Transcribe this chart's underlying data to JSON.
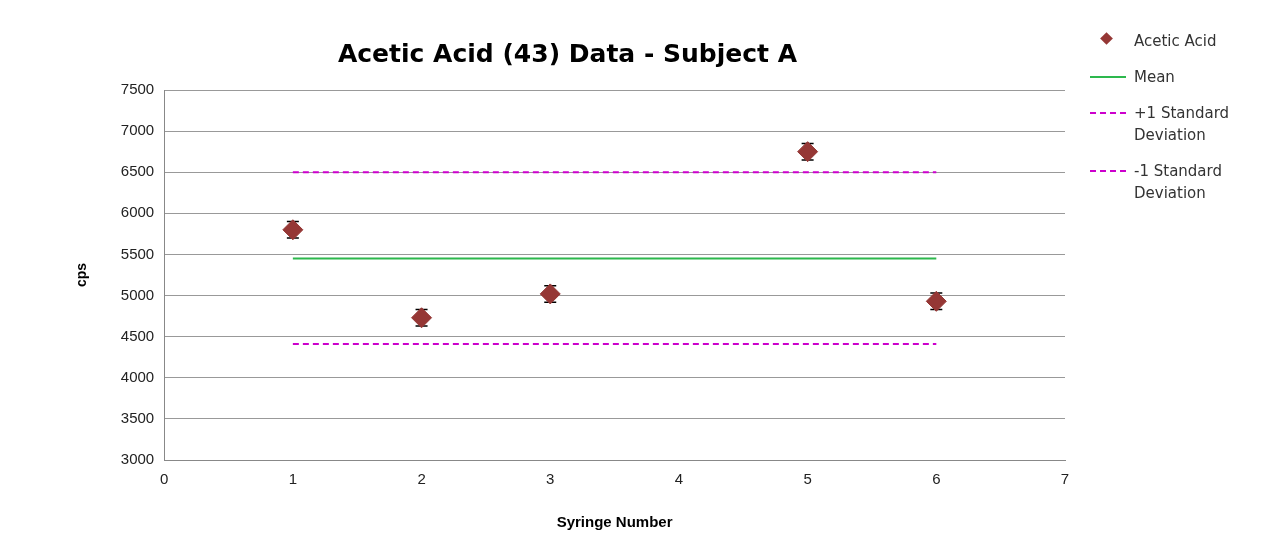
{
  "chart_data": {
    "type": "scatter",
    "title": "Acetic Acid (43) Data - Subject A",
    "xlabel": "Syringe Number",
    "ylabel": "cps",
    "xlim": [
      0,
      7
    ],
    "xticks": [
      0,
      1,
      2,
      3,
      4,
      5,
      6,
      7
    ],
    "ylim": [
      3000,
      7500
    ],
    "yticks": [
      3000,
      3500,
      4000,
      4500,
      5000,
      5500,
      6000,
      6500,
      7000,
      7500
    ],
    "grid": "y",
    "legend": "right",
    "marker": "diamond",
    "series": [
      {
        "name": "Acetic Acid",
        "color": "#953735",
        "x": [
          1,
          2,
          3,
          5,
          6
        ],
        "values": [
          5800,
          4730,
          5020,
          6750,
          4930
        ],
        "errors": [
          100,
          100,
          100,
          100,
          100
        ]
      },
      {
        "name": "Mean",
        "type": "line",
        "color": "#2db84d",
        "x": [
          1,
          6
        ],
        "values": [
          5450,
          5450
        ],
        "line_style": "solid",
        "marker": "none"
      },
      {
        "name": "+1 Standard Deviation",
        "type": "line",
        "color": "#cc00cc",
        "x": [
          1,
          6
        ],
        "values": [
          6500,
          6500
        ],
        "line_style": "dashed",
        "marker": "none"
      },
      {
        "name": "-1 Standard Deviation",
        "type": "line",
        "color": "#cc00cc",
        "x": [
          1,
          6
        ],
        "values": [
          4410,
          4410
        ],
        "line_style": "dashed",
        "marker": "none"
      }
    ]
  }
}
